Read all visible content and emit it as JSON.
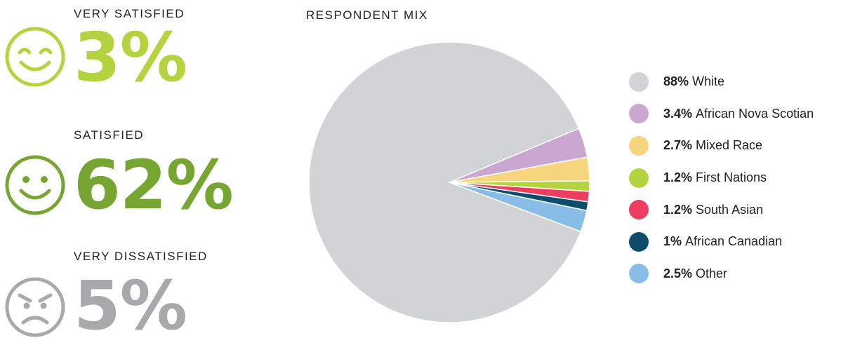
{
  "satisfaction": [
    {
      "label": "VERY SATISFIED",
      "value": "3%",
      "color": "#b5d33e",
      "icon": "grinning-face-icon"
    },
    {
      "label": "SATISFIED",
      "value": "62%",
      "color": "#76a631",
      "icon": "smiling-face-icon"
    },
    {
      "label": "VERY DISSATISFIED",
      "value": "5%",
      "color": "#a9a9ab",
      "icon": "angry-face-icon"
    }
  ],
  "chart_data": {
    "type": "pie",
    "title": "RESPONDENT MIX",
    "legend_position": "right",
    "slices": [
      {
        "pct_label": "88%",
        "name": "White",
        "value": 88,
        "color": "#d1d3d4"
      },
      {
        "pct_label": "3.4%",
        "name": "African Nova Scotian",
        "value": 3.4,
        "color": "#c9a7d0"
      },
      {
        "pct_label": "2.7%",
        "name": "Mixed Race",
        "value": 2.7,
        "color": "#f6d57d"
      },
      {
        "pct_label": "1.2%",
        "name": "First Nations",
        "value": 1.2,
        "color": "#b5d33e"
      },
      {
        "pct_label": "1.2%",
        "name": "South Asian",
        "value": 1.2,
        "color": "#ee3e5f"
      },
      {
        "pct_label": "1%",
        "name": "African Canadian",
        "value": 1,
        "color": "#0d4d6b"
      },
      {
        "pct_label": "2.5%",
        "name": "Other",
        "value": 2.5,
        "color": "#87bde6"
      }
    ]
  }
}
